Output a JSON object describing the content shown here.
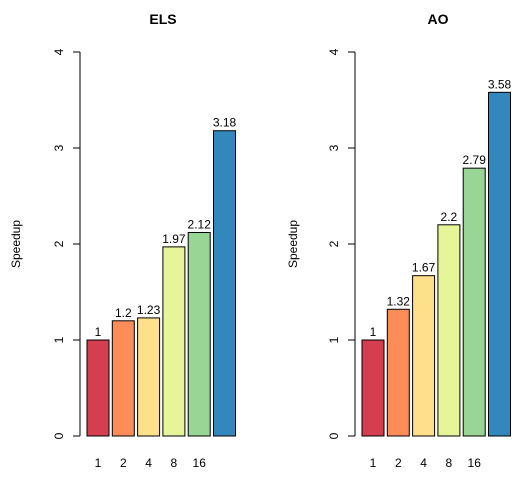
{
  "chart_data": [
    {
      "type": "bar",
      "title": "ELS",
      "xlabel": "",
      "ylabel": "Speedup",
      "ylim": [
        0,
        4
      ],
      "yticks": [
        "0",
        "1",
        "2",
        "3",
        "4"
      ],
      "grid": false,
      "categories": [
        "1",
        "2",
        "4",
        "8",
        "16",
        ""
      ],
      "values": [
        1,
        1.2,
        1.23,
        1.97,
        2.12,
        3.18
      ],
      "value_labels": [
        "1",
        "1.2",
        "1.23",
        "1.97",
        "2.12",
        "3.18"
      ],
      "colors": [
        "#d53e4f",
        "#fc8d59",
        "#fee08b",
        "#e6f598",
        "#99d594",
        "#3288bd"
      ]
    },
    {
      "type": "bar",
      "title": "AO",
      "xlabel": "",
      "ylabel": "Speedup",
      "ylim": [
        0,
        4
      ],
      "yticks": [
        "0",
        "1",
        "2",
        "3",
        "4"
      ],
      "grid": false,
      "categories": [
        "1",
        "2",
        "4",
        "8",
        "16",
        ""
      ],
      "values": [
        1,
        1.32,
        1.67,
        2.2,
        2.79,
        3.58
      ],
      "value_labels": [
        "1",
        "1.32",
        "1.67",
        "2.2",
        "2.79",
        "3.58"
      ],
      "colors": [
        "#d53e4f",
        "#fc8d59",
        "#fee08b",
        "#e6f598",
        "#99d594",
        "#3288bd"
      ]
    }
  ]
}
